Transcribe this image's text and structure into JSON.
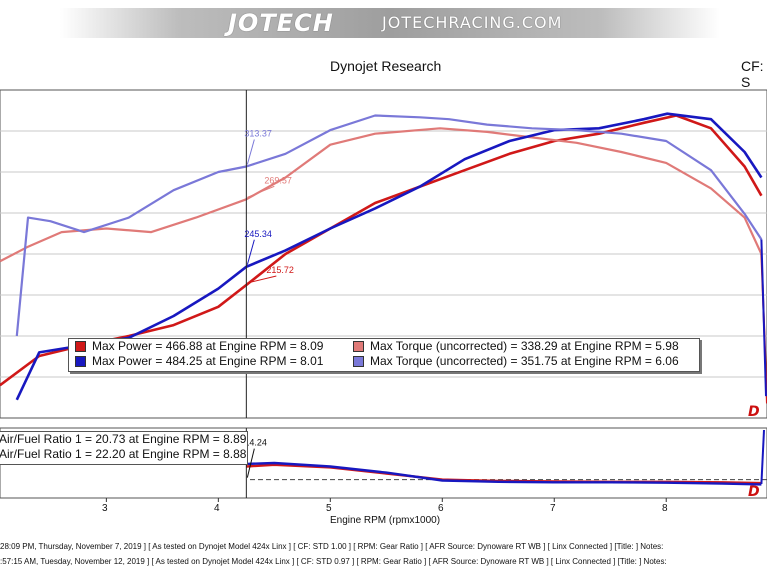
{
  "banner": {
    "logo_text": "JOTECH",
    "site_text": "JOTECHRACING.COM"
  },
  "header": {
    "title": "Dynojet Research",
    "cf_label": "CF: S"
  },
  "colors": {
    "run1_power": "#d01818",
    "run1_torque": "#e07a78",
    "run2_power": "#1818c0",
    "run2_torque": "#7a78d8"
  },
  "chart_data": {
    "type": "line",
    "xlabel": "Engine RPM (rpmx1000)",
    "x_ticks": [
      "3",
      "4",
      "5",
      "6",
      "7",
      "8"
    ],
    "xlim": [
      2.05,
      8.9
    ],
    "cursor_rpm": 4.25,
    "main_ylim": [
      160,
      340
    ],
    "afr_ylim": [
      9,
      25
    ],
    "series": [
      {
        "name": "Max Power",
        "color": "#d01818",
        "x": [
          2.05,
          2.4,
          2.8,
          3.2,
          3.6,
          4.0,
          4.25,
          4.6,
          5.0,
          5.4,
          5.8,
          6.2,
          6.6,
          7.0,
          7.4,
          7.8,
          8.09,
          8.4,
          8.7,
          8.85
        ],
        "values": [
          178,
          194,
          200,
          205,
          211,
          221,
          233,
          250,
          264,
          278,
          287,
          296,
          305,
          312,
          316,
          322,
          326,
          319,
          298,
          282
        ]
      },
      {
        "name": "Max Torque (uncorrected)",
        "color": "#e07a78",
        "x": [
          2.05,
          2.3,
          2.6,
          3.0,
          3.4,
          3.8,
          4.25,
          4.6,
          5.0,
          5.4,
          5.98,
          6.4,
          6.8,
          7.2,
          7.6,
          8.0,
          8.4,
          8.7,
          8.85
        ],
        "values": [
          246,
          254,
          262,
          264,
          262,
          270,
          280,
          292,
          310,
          316,
          319,
          317,
          314,
          311,
          306,
          300,
          286,
          270,
          250
        ]
      },
      {
        "name": "Max Power",
        "color": "#1818c0",
        "x": [
          2.2,
          2.4,
          2.8,
          3.2,
          3.6,
          4.0,
          4.25,
          4.6,
          5.0,
          5.4,
          5.8,
          6.2,
          6.6,
          7.0,
          7.4,
          7.8,
          8.01,
          8.4,
          8.7,
          8.85
        ],
        "values": [
          170,
          196,
          200,
          204,
          216,
          231,
          243,
          252,
          264,
          275,
          287,
          302,
          312,
          318,
          319,
          324,
          327,
          324,
          306,
          292
        ]
      },
      {
        "name": "Max Torque (uncorrected)",
        "color": "#7a78d8",
        "x": [
          2.2,
          2.3,
          2.5,
          2.8,
          3.2,
          3.6,
          4.0,
          4.25,
          4.6,
          5.0,
          5.4,
          5.8,
          6.06,
          6.4,
          6.8,
          7.2,
          7.6,
          8.0,
          8.4,
          8.7,
          8.85
        ],
        "values": [
          205,
          270,
          268,
          262,
          270,
          285,
          295,
          298,
          305,
          318,
          326,
          325,
          324,
          321,
          319,
          318,
          316,
          312,
          296,
          272,
          258
        ]
      }
    ],
    "afr_series": [
      {
        "name": "Air/Fuel Ratio 1",
        "color": "#d01818",
        "x": [
          4.25,
          4.5,
          5.0,
          5.5,
          6.0,
          6.5,
          7.0,
          7.5,
          8.0,
          8.5,
          8.85
        ],
        "values": [
          16.2,
          16.6,
          16.0,
          14.6,
          13.2,
          12.9,
          12.8,
          12.7,
          12.7,
          12.6,
          12.4
        ]
      },
      {
        "name": "Air/Fuel Ratio 1",
        "color": "#1818c0",
        "x": [
          4.25,
          4.5,
          5.0,
          5.5,
          6.0,
          6.5,
          7.0,
          7.5,
          8.0,
          8.5,
          8.85
        ],
        "values": [
          16.8,
          17.0,
          16.2,
          14.8,
          13.0,
          12.7,
          12.6,
          12.6,
          12.5,
          12.3,
          12.1
        ]
      }
    ],
    "cursor_labels": [
      {
        "text": "313.37",
        "color": "#7a78d8",
        "x": 4.25,
        "y": 298
      },
      {
        "text": "269.57",
        "color": "#e07a78",
        "x": 4.25,
        "y": 280
      },
      {
        "text": "245.34",
        "color": "#1818c0",
        "x": 4.25,
        "y": 243
      },
      {
        "text": "215.72",
        "color": "#d01818",
        "x": 4.25,
        "y": 233
      },
      {
        "text": "14.24",
        "color": "#111111",
        "x": 4.25,
        "afr": 13.2
      }
    ],
    "legend": [
      {
        "color": "#d01818",
        "text": "Max Power = 466.88 at Engine RPM = 8.09"
      },
      {
        "color": "#e07a78",
        "text": "Max Torque (uncorrected) = 338.29 at Engine RPM = 5.98"
      },
      {
        "color": "#1818c0",
        "text": "Max Power = 484.25 at Engine RPM = 8.01"
      },
      {
        "color": "#7a78d8",
        "text": "Max Torque (uncorrected) = 351.75 at Engine RPM = 6.06"
      }
    ],
    "afr_legend": [
      "Air/Fuel Ratio 1 = 20.73 at Engine RPM = 8.89",
      "Air/Fuel Ratio 1 = 22.20 at Engine RPM = 8.88"
    ]
  },
  "footer": {
    "run1": "28:09 PM, Thursday, November 7, 2019 ] [ As tested on Dynojet Model 424x Linx ] [ CF: STD 1.00 ] [ RPM: Gear Ratio ] [ AFR Source: Dynoware RT WB ] [ Linx Connected ] [Title: ]  Notes:",
    "run2": ":57:15 AM, Tuesday, November 12, 2019 ] [ As tested on Dynojet Model 424x Linx ] [ CF: STD 0.97 ] [ RPM: Gear Ratio ] [ AFR Source: Dynoware RT WB ] [ Linx Connected ] [Title: ]  Notes:"
  }
}
